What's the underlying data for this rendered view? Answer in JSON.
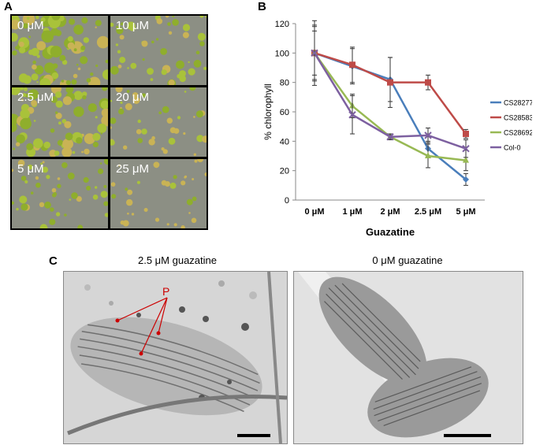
{
  "panels": {
    "a": "A",
    "b": "B",
    "c": "C"
  },
  "seedling_tiles": [
    {
      "label": "0 μM",
      "cover": 1.0
    },
    {
      "label": "10 μM",
      "cover": 0.45
    },
    {
      "label": "2.5 μM",
      "cover": 0.85
    },
    {
      "label": "20 μM",
      "cover": 0.3
    },
    {
      "label": "5 μM",
      "cover": 0.4
    },
    {
      "label": "25 μM",
      "cover": 0.2
    }
  ],
  "chart_data": {
    "type": "line",
    "categories": [
      "0 μM",
      "1 μM",
      "2 μM",
      "2.5 μM",
      "5 μM"
    ],
    "xlabel": "Guazatine",
    "ylabel": "% chlorophyll",
    "ylim": [
      0,
      120
    ],
    "yticks": [
      0,
      20,
      40,
      60,
      80,
      100,
      120
    ],
    "legend_position": "right",
    "series": [
      {
        "name": "CS28277",
        "color": "#4a7ebb",
        "marker": "diamond",
        "values": [
          100,
          91,
          82,
          35,
          14
        ],
        "errors": [
          22,
          12,
          15,
          5,
          4
        ]
      },
      {
        "name": "CS28583",
        "color": "#be4b48",
        "marker": "square",
        "values": [
          100,
          92,
          80,
          80,
          45
        ],
        "errors": [
          18,
          12,
          17,
          5,
          3
        ]
      },
      {
        "name": "CS28692",
        "color": "#98b954",
        "marker": "triangle",
        "values": [
          100,
          64,
          43,
          30,
          27
        ],
        "errors": [
          15,
          8,
          2,
          8,
          7
        ]
      },
      {
        "name": "Col-0",
        "color": "#7d60a0",
        "marker": "x",
        "values": [
          100,
          58,
          43,
          44,
          35
        ],
        "errors": [
          19,
          13,
          2,
          5,
          6
        ]
      }
    ]
  },
  "micrographs": {
    "left_title": "2.5 μM guazatine",
    "right_title": "0 μM guazatine",
    "annotation": "P"
  }
}
